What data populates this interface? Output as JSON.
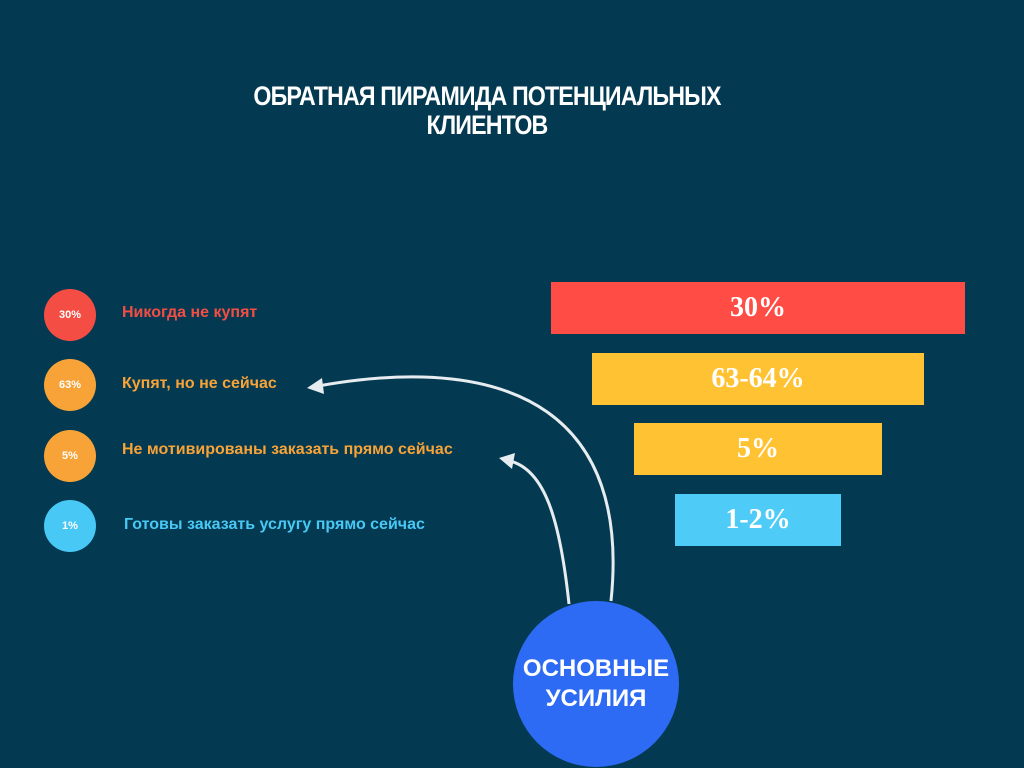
{
  "title": {
    "line1": "ОБРАТНАЯ ПИРАМИДА ПОТЕНЦИАЛЬНЫХ",
    "line2": "КЛИЕНТОВ"
  },
  "rows": [
    {
      "badge": "30%",
      "label": "Никогда не купят",
      "bar": "30%",
      "badge_color": "#F44D43",
      "label_color": "#F44D43",
      "bar_color": "#FF4C44"
    },
    {
      "badge": "63%",
      "label": "Купят, но не сейчас",
      "bar": "63-64%",
      "badge_color": "#F8A338",
      "label_color": "#F8A338",
      "bar_color": "#FFC233"
    },
    {
      "badge": "5%",
      "label": "Не мотивированы заказать прямо сейчас",
      "bar": "5%",
      "badge_color": "#F8A338",
      "label_color": "#F8A338",
      "bar_color": "#FFC233"
    },
    {
      "badge": "1%",
      "label": "Готовы заказать услугу прямо сейчас",
      "bar": "1-2%",
      "badge_color": "#48C8F5",
      "label_color": "#48C8F5",
      "bar_color": "#4FCBF8"
    }
  ],
  "effort": {
    "line1": "ОСНОВНЫЕ",
    "line2": "УСИЛИЯ",
    "color": "#2E6BF5"
  },
  "background": "#033A51"
}
